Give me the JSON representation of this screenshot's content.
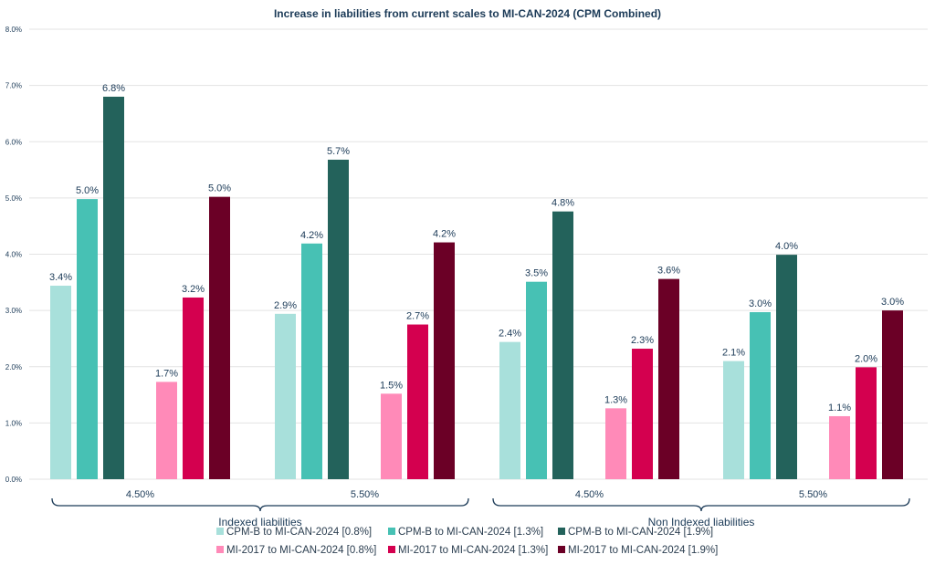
{
  "chart_data": {
    "type": "bar",
    "title": "Increase in liabilities from current scales to MI-CAN-2024 (CPM Combined)",
    "ylim": [
      0,
      8
    ],
    "yticks": [
      "0.0%",
      "1.0%",
      "2.0%",
      "3.0%",
      "4.0%",
      "5.0%",
      "6.0%",
      "7.0%",
      "8.0%"
    ],
    "grid": true,
    "legend_position": "bottom",
    "groups": [
      "Indexed liabilities",
      "Non Indexed liabilities"
    ],
    "rates": [
      "4.50%",
      "5.50%"
    ],
    "categories": [
      "Indexed liabilities 4.50%",
      "Indexed liabilities 5.50%",
      "Non Indexed liabilities 4.50%",
      "Non Indexed liabilities 5.50%"
    ],
    "series": [
      {
        "name": "CPM-B to MI-CAN-2024 [0.8%]",
        "color": "#a8e0db",
        "values": [
          3.44,
          2.94,
          2.44,
          2.1
        ],
        "labels": [
          "3.4%",
          "2.9%",
          "2.4%",
          "2.1%"
        ]
      },
      {
        "name": "CPM-B to MI-CAN-2024 [1.3%]",
        "color": "#47c1b4",
        "values": [
          4.98,
          4.19,
          3.51,
          2.97
        ],
        "labels": [
          "5.0%",
          "4.2%",
          "3.5%",
          "3.0%"
        ]
      },
      {
        "name": "CPM-B to MI-CAN-2024 [1.9%]",
        "color": "#23625b",
        "values": [
          6.8,
          5.68,
          4.76,
          3.99
        ],
        "labels": [
          "6.8%",
          "5.7%",
          "4.8%",
          "4.0%"
        ]
      },
      {
        "name": "MI-2017 to MI-CAN-2024 [0.8%]",
        "color": "#ff8ab8",
        "values": [
          1.73,
          1.52,
          1.26,
          1.12
        ],
        "labels": [
          "1.7%",
          "1.5%",
          "1.3%",
          "1.1%"
        ]
      },
      {
        "name": "MI-2017 to MI-CAN-2024 [1.3%]",
        "color": "#d4004f",
        "values": [
          3.23,
          2.75,
          2.32,
          1.99
        ],
        "labels": [
          "3.2%",
          "2.7%",
          "2.3%",
          "2.0%"
        ]
      },
      {
        "name": "MI-2017 to MI-CAN-2024 [1.9%]",
        "color": "#6b0026",
        "values": [
          5.02,
          4.21,
          3.56,
          3.0
        ],
        "labels": [
          "5.0%",
          "4.2%",
          "3.6%",
          "3.0%"
        ]
      }
    ]
  }
}
